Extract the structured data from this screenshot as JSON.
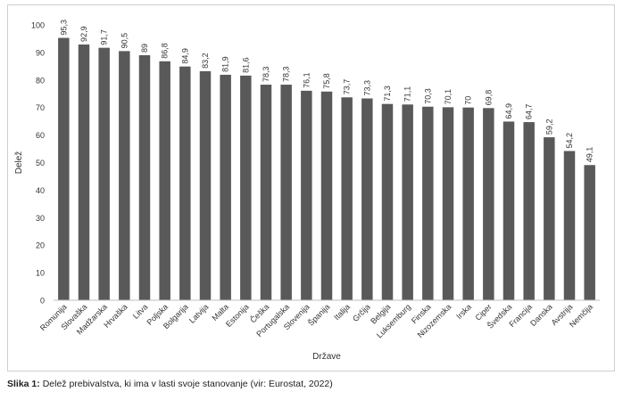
{
  "caption": {
    "label": "Slika 1:",
    "text": " Delež prebivalstva, ki ima v lasti svoje stanovanje (vir: Eurostat, 2022)"
  },
  "chart_data": {
    "type": "bar",
    "xlabel": "Države",
    "ylabel": "Delež",
    "ylim": [
      0,
      100
    ],
    "yticks": [
      0,
      10,
      20,
      30,
      40,
      50,
      60,
      70,
      80,
      90,
      100
    ],
    "grid": false,
    "bar_color": "#595959",
    "categories": [
      "Romunija",
      "Slovaška",
      "Madžarska",
      "Hrvaška",
      "Litva",
      "Poljska",
      "Bolgarija",
      "Latvija",
      "Malta",
      "Estonija",
      "Češka",
      "Portugalska",
      "Slovenija",
      "Španija",
      "Italija",
      "Grčija",
      "Belgija",
      "Luksemburg",
      "Finska",
      "Nizozemska",
      "Irska",
      "Ciper",
      "Švedska",
      "Francija",
      "Danska",
      "Avstrija",
      "Nemčija"
    ],
    "values": [
      95.3,
      92.9,
      91.7,
      90.5,
      89,
      86.8,
      84.9,
      83.2,
      81.9,
      81.6,
      78.3,
      78.3,
      76.1,
      75.8,
      73.7,
      73.3,
      71.3,
      71.1,
      70.3,
      70.1,
      70,
      69.8,
      64.9,
      64.7,
      59.2,
      54.2,
      49.1
    ],
    "value_labels": [
      "95,3",
      "92,9",
      "91,7",
      "90,5",
      "89",
      "86,8",
      "84,9",
      "83,2",
      "81,9",
      "81,6",
      "78,3",
      "78,3",
      "76,1",
      "75,8",
      "73,7",
      "73,3",
      "71,3",
      "71,1",
      "70,3",
      "70,1",
      "70",
      "69,8",
      "64,9",
      "64,7",
      "59,2",
      "54,2",
      "49,1"
    ]
  }
}
